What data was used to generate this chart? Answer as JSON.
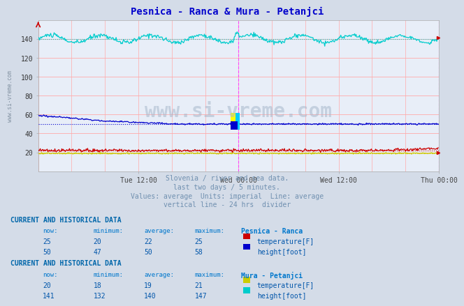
{
  "title": "Pesnica - Ranca & Mura - Petanjci",
  "title_color": "#0000cc",
  "bg_color": "#d4dce8",
  "plot_bg_color": "#e8eef8",
  "fig_width": 6.59,
  "fig_height": 4.3,
  "dpi": 100,
  "xlim": [
    0,
    576
  ],
  "ylim": [
    0,
    160
  ],
  "yticks": [
    20,
    40,
    60,
    80,
    100,
    120,
    140
  ],
  "xtick_labels": [
    "Tue 12:00",
    "Wed 00:00",
    "Wed 12:00",
    "Thu 00:00"
  ],
  "xtick_positions": [
    144,
    288,
    432,
    576
  ],
  "grid_color": "#ffaaaa",
  "divider_x": 288,
  "divider_color": "#ff44ff",
  "watermark": "www.si-vreme.com",
  "subtitle_lines": [
    "Slovenia / river and sea data.",
    "last two days / 5 minutes.",
    "Values: average  Units: imperial  Line: average",
    "vertical line - 24 hrs  divider"
  ],
  "subtitle_color": "#7090b0",
  "series": {
    "pesnica_temp": {
      "color": "#cc0000",
      "avg": 22,
      "now": 25,
      "min": 20,
      "max": 25,
      "label": "temperature[F]",
      "swatch": "#cc0000"
    },
    "pesnica_height": {
      "color": "#0000cc",
      "avg": 50,
      "now": 50,
      "min": 47,
      "max": 58,
      "label": "height[foot]",
      "swatch": "#0000cc"
    },
    "mura_temp": {
      "color": "#cccc00",
      "avg": 19,
      "now": 20,
      "min": 18,
      "max": 21,
      "label": "temperature[F]",
      "swatch": "#cccc00"
    },
    "mura_height": {
      "color": "#00cccc",
      "avg": 140,
      "now": 141,
      "min": 132,
      "max": 147,
      "label": "height[foot]",
      "swatch": "#00cccc"
    }
  },
  "table1_station": "Pesnica - Ranca",
  "table2_station": "Mura - Petanjci",
  "table_color": "#0055aa",
  "table_header_color": "#0077cc",
  "table_title_color": "#0066aa"
}
